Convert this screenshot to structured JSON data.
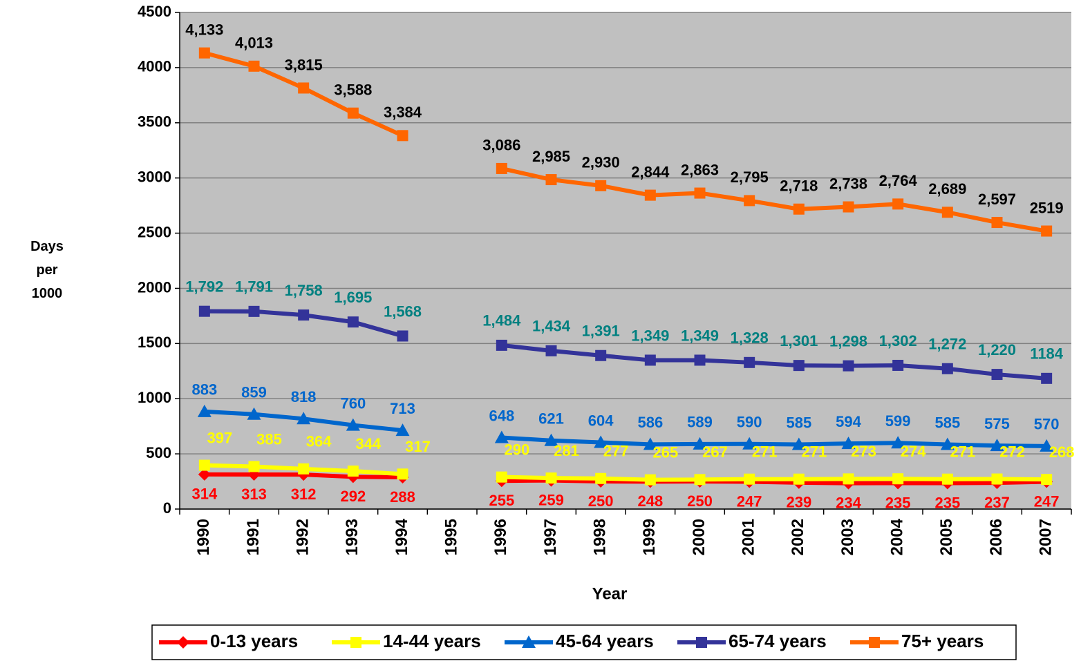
{
  "chart_data": {
    "type": "line",
    "xlabel": "Year",
    "ylabel": "Days per 1000",
    "categories": [
      "1990",
      "1991",
      "1992",
      "1993",
      "1994",
      "1995",
      "1996",
      "1997",
      "1998",
      "1999",
      "2000",
      "2001",
      "2002",
      "2003",
      "2004",
      "2005",
      "2006",
      "2007"
    ],
    "ylim": [
      0,
      4500
    ],
    "yticks": [
      0,
      500,
      1000,
      1500,
      2000,
      2500,
      3000,
      3500,
      4000,
      4500
    ],
    "grid": true,
    "legend": "bottom",
    "series": [
      {
        "name": "0-13 years",
        "color": "#ff0000",
        "label_color": "#ff0000",
        "marker": "diamond",
        "values": [
          314,
          313,
          312,
          292,
          288,
          null,
          255,
          259,
          250,
          248,
          250,
          247,
          239,
          234,
          235,
          235,
          237,
          247
        ]
      },
      {
        "name": "14-44 years",
        "color": "#ffff00",
        "label_color": "#ffff00",
        "marker": "square",
        "values": [
          397,
          385,
          364,
          344,
          317,
          null,
          290,
          281,
          277,
          265,
          267,
          271,
          271,
          273,
          274,
          271,
          272,
          268
        ]
      },
      {
        "name": "45-64 years",
        "color": "#0066cc",
        "label_color": "#0066cc",
        "marker": "triangle",
        "values": [
          883,
          859,
          818,
          760,
          713,
          null,
          648,
          621,
          604,
          586,
          589,
          590,
          585,
          594,
          599,
          585,
          575,
          570
        ]
      },
      {
        "name": "65-74 years",
        "color": "#333399",
        "label_color": "#008080",
        "marker": "square",
        "values": [
          1792,
          1791,
          1758,
          1695,
          1568,
          null,
          1484,
          1434,
          1391,
          1349,
          1349,
          1328,
          1301,
          1298,
          1302,
          1272,
          1220,
          1184
        ],
        "value_labels": [
          "1,792",
          "1,791",
          "1,758",
          "1,695",
          "1,568",
          null,
          "1,484",
          "1,434",
          "1,391",
          "1,349",
          "1,349",
          "1,328",
          "1,301",
          "1,298",
          "1,302",
          "1,272",
          "1,220",
          "1184"
        ]
      },
      {
        "name": "75+ years",
        "color": "#ff6600",
        "label_color": "#000000",
        "marker": "square",
        "values": [
          4133,
          4013,
          3815,
          3588,
          3384,
          null,
          3086,
          2985,
          2930,
          2844,
          2863,
          2795,
          2718,
          2738,
          2764,
          2689,
          2597,
          2519
        ],
        "value_labels": [
          "4,133",
          "4,013",
          "3,815",
          "3,588",
          "3,384",
          null,
          "3,086",
          "2,985",
          "2,930",
          "2,844",
          "2,863",
          "2,795",
          "2,718",
          "2,738",
          "2,764",
          "2,689",
          "2,597",
          "2519"
        ]
      }
    ]
  }
}
